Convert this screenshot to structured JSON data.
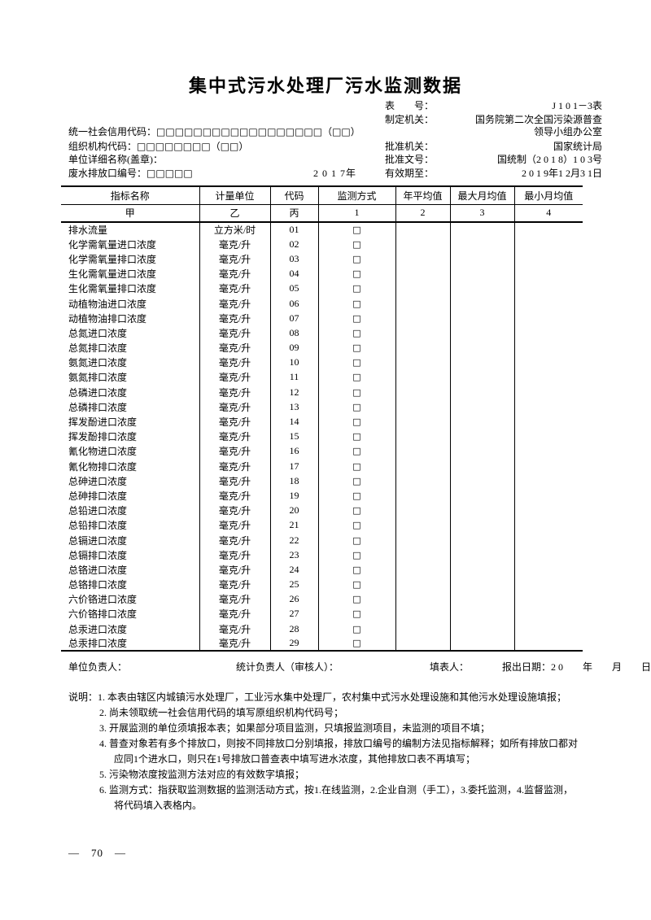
{
  "title": "集中式污水处理厂污水监测数据",
  "meta": {
    "right": [
      {
        "label": "表　　号：",
        "value": "J 1 0 1－3表"
      },
      {
        "label": "制定机关：",
        "value": "国务院第二次全国污染源普查"
      },
      {
        "label": "",
        "value": "领导小组办公室"
      },
      {
        "label": "批准机关：",
        "value": "国家统计局"
      },
      {
        "label": "批准文号：",
        "value": "国统制（2 0 1 8）1 0 3号"
      },
      {
        "label": "有效期至：",
        "value": "2 0 1 9年1 2月3 1日"
      }
    ],
    "left": {
      "credit_code_label": "统一社会信用代码：",
      "credit_code_boxes": "□□□□□□□□□□□□□□□□□□（□□）",
      "org_code_label": "组织机构代码：",
      "org_code_boxes": "□□□□□□□□（□□）",
      "unit_name_label": "单位详细名称(盖章)：",
      "outlet_label": "废水排放口编号：",
      "outlet_boxes": "□□□□□",
      "year": "2 0 1 7年"
    }
  },
  "table": {
    "headers": [
      "指标名称",
      "计量单位",
      "代码",
      "监测方式",
      "年平均值",
      "最大月均值",
      "最小月均值"
    ],
    "subheaders": [
      "甲",
      "乙",
      "丙",
      "1",
      "2",
      "3",
      "4"
    ],
    "checkbox_glyph": "□",
    "rows": [
      {
        "name": "排水流量",
        "unit": "立方米/时",
        "code": "01"
      },
      {
        "name": "化学需氧量进口浓度",
        "unit": "毫克/升",
        "code": "02"
      },
      {
        "name": "化学需氧量排口浓度",
        "unit": "毫克/升",
        "code": "03"
      },
      {
        "name": "生化需氧量进口浓度",
        "unit": "毫克/升",
        "code": "04"
      },
      {
        "name": "生化需氧量排口浓度",
        "unit": "毫克/升",
        "code": "05"
      },
      {
        "name": "动植物油进口浓度",
        "unit": "毫克/升",
        "code": "06"
      },
      {
        "name": "动植物油排口浓度",
        "unit": "毫克/升",
        "code": "07"
      },
      {
        "name": "总氮进口浓度",
        "unit": "毫克/升",
        "code": "08"
      },
      {
        "name": "总氮排口浓度",
        "unit": "毫克/升",
        "code": "09"
      },
      {
        "name": "氨氮进口浓度",
        "unit": "毫克/升",
        "code": "10"
      },
      {
        "name": "氨氮排口浓度",
        "unit": "毫克/升",
        "code": "11"
      },
      {
        "name": "总磷进口浓度",
        "unit": "毫克/升",
        "code": "12"
      },
      {
        "name": "总磷排口浓度",
        "unit": "毫克/升",
        "code": "13"
      },
      {
        "name": "挥发酚进口浓度",
        "unit": "毫克/升",
        "code": "14"
      },
      {
        "name": "挥发酚排口浓度",
        "unit": "毫克/升",
        "code": "15"
      },
      {
        "name": "氰化物进口浓度",
        "unit": "毫克/升",
        "code": "16"
      },
      {
        "name": "氰化物排口浓度",
        "unit": "毫克/升",
        "code": "17"
      },
      {
        "name": "总砷进口浓度",
        "unit": "毫克/升",
        "code": "18"
      },
      {
        "name": "总砷排口浓度",
        "unit": "毫克/升",
        "code": "19"
      },
      {
        "name": "总铅进口浓度",
        "unit": "毫克/升",
        "code": "20"
      },
      {
        "name": "总铅排口浓度",
        "unit": "毫克/升",
        "code": "21"
      },
      {
        "name": "总镉进口浓度",
        "unit": "毫克/升",
        "code": "22"
      },
      {
        "name": "总镉排口浓度",
        "unit": "毫克/升",
        "code": "23"
      },
      {
        "name": "总铬进口浓度",
        "unit": "毫克/升",
        "code": "24"
      },
      {
        "name": "总铬排口浓度",
        "unit": "毫克/升",
        "code": "25"
      },
      {
        "name": "六价铬进口浓度",
        "unit": "毫克/升",
        "code": "26"
      },
      {
        "name": "六价铬排口浓度",
        "unit": "毫克/升",
        "code": "27"
      },
      {
        "name": "总汞进口浓度",
        "unit": "毫克/升",
        "code": "28"
      },
      {
        "name": "总汞排口浓度",
        "unit": "毫克/升",
        "code": "29"
      }
    ]
  },
  "footer": {
    "unit_head": "单位负责人：",
    "stats_head": "统计负责人（审核人）：",
    "form_filler": "填表人：",
    "report_date": "报出日期：2 0　　年　　月　　日"
  },
  "notes": {
    "label": "说明：",
    "lines": [
      "1. 本表由辖区内城镇污水处理厂，工业污水集中处理厂，农村集中式污水处理设施和其他污水处理设施填报；",
      "2. 尚未领取统一社会信用代码的填写原组织机构代码号；",
      "3. 开展监测的单位须填报本表；如果部分项目监测，只填报监测项目，未监测的项目不填；",
      "4. 普查对象若有多个排放口，则按不同排放口分别填报，排放口编号的编制方法见指标解释；如所有排放口都对",
      "应同1个进水口，则只在1号排放口普查表中填写进水浓度，其他排放口表不再填写；",
      "5. 污染物浓度按监测方法对应的有效数字填报；",
      "6. 监测方式：指获取监测数据的监测活动方式，按1.在线监测，2.企业自测（手工），3.委托监测，4.监督监测，",
      "将代码填入表格内。"
    ]
  },
  "page_number": "—　70　—"
}
